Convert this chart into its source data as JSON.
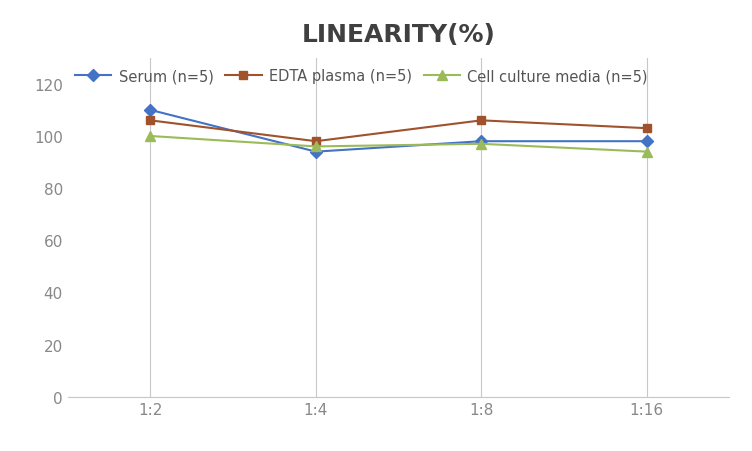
{
  "title": "LINEARITY(%)",
  "x_labels": [
    "1:2",
    "1:4",
    "1:8",
    "1:16"
  ],
  "x_positions": [
    0,
    1,
    2,
    3
  ],
  "series": [
    {
      "label": "Serum (n=5)",
      "values": [
        110,
        94,
        98,
        98
      ],
      "color": "#4472C4",
      "marker": "D",
      "markersize": 6
    },
    {
      "label": "EDTA plasma (n=5)",
      "values": [
        106,
        98,
        106,
        103
      ],
      "color": "#A0522D",
      "marker": "s",
      "markersize": 6
    },
    {
      "label": "Cell culture media (n=5)",
      "values": [
        100,
        96,
        97,
        94
      ],
      "color": "#9BBB59",
      "marker": "^",
      "markersize": 7
    }
  ],
  "ylim": [
    0,
    130
  ],
  "yticks": [
    0,
    20,
    40,
    60,
    80,
    100,
    120
  ],
  "title_fontsize": 18,
  "title_color": "#404040",
  "legend_fontsize": 10.5,
  "tick_fontsize": 11,
  "tick_color": "#888888",
  "background_color": "#ffffff",
  "grid_color": "#c8c8c8"
}
